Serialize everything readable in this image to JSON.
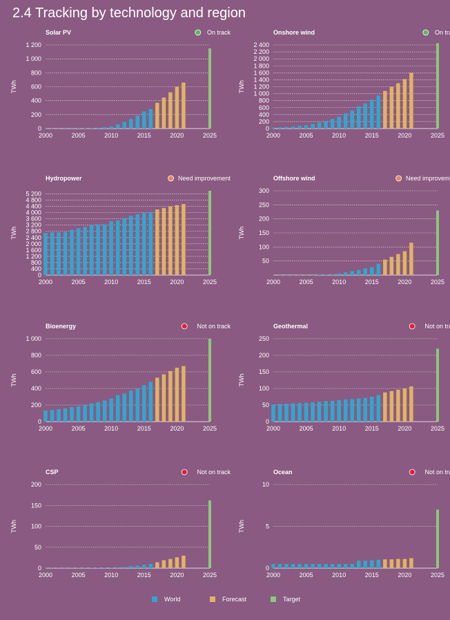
{
  "page": {
    "title": "2.4 Tracking by technology and region"
  },
  "colors": {
    "world": "#2fa8cf",
    "forecast": "#e0b366",
    "target": "#8cc97a",
    "on_track": "#5cb85c",
    "need_improvement": "#e08a5c",
    "not_on_track": "#e0203a"
  },
  "legend": [
    {
      "label": "World",
      "key": "world"
    },
    {
      "label": "Forecast",
      "key": "forecast"
    },
    {
      "label": "Target",
      "key": "target"
    }
  ],
  "chart_data": [
    {
      "type": "bar",
      "title": "Solar PV",
      "status": "On track",
      "status_key": "on_track",
      "ylabel": "TWh",
      "yticks": [
        0,
        200,
        400,
        600,
        800,
        1000,
        1200
      ],
      "ytick_labels": [
        "0",
        "200",
        "400",
        "600",
        "800",
        "1 000",
        "1 200"
      ],
      "ylim": [
        0,
        1200
      ],
      "xticks": [
        2000,
        2005,
        2010,
        2015,
        2020,
        2025
      ],
      "world": {
        "x": [
          2000,
          2001,
          2002,
          2003,
          2004,
          2005,
          2006,
          2007,
          2008,
          2009,
          2010,
          2011,
          2012,
          2013,
          2014,
          2015,
          2016
        ],
        "values": [
          1,
          1,
          2,
          2,
          3,
          4,
          5,
          7,
          12,
          20,
          32,
          60,
          95,
          135,
          185,
          245,
          280
        ]
      },
      "forecast": {
        "x": [
          2017,
          2018,
          2019,
          2020,
          2021
        ],
        "values": [
          370,
          445,
          520,
          600,
          660
        ]
      },
      "target": {
        "x": 2025,
        "value": 1150
      }
    },
    {
      "type": "bar",
      "title": "Onshore wind",
      "status": "On track",
      "status_key": "on_track",
      "ylabel": "TWh",
      "yticks": [
        0,
        200,
        400,
        600,
        800,
        1000,
        1200,
        1400,
        1600,
        1800,
        2000,
        2200,
        2400
      ],
      "ytick_labels": [
        "0",
        "200",
        "400",
        "600",
        "800",
        "1 000",
        "1 200",
        "1 400",
        "1 600",
        "1 800",
        "2 000",
        "2 200",
        "2 400"
      ],
      "ylim": [
        0,
        2400
      ],
      "xticks": [
        2000,
        2005,
        2010,
        2015,
        2020,
        2025
      ],
      "world": {
        "x": [
          2000,
          2001,
          2002,
          2003,
          2004,
          2005,
          2006,
          2007,
          2008,
          2009,
          2010,
          2011,
          2012,
          2013,
          2014,
          2015,
          2016
        ],
        "values": [
          30,
          38,
          50,
          62,
          82,
          100,
          130,
          170,
          220,
          275,
          340,
          440,
          520,
          640,
          720,
          830,
          950
        ]
      },
      "forecast": {
        "x": [
          2017,
          2018,
          2019,
          2020,
          2021
        ],
        "values": [
          1080,
          1200,
          1300,
          1420,
          1600
        ]
      },
      "target": {
        "x": 2025,
        "value": 2450
      }
    },
    {
      "type": "bar",
      "title": "Hydropower",
      "status": "Need improvement",
      "status_key": "need_improvement",
      "ylabel": "TWh",
      "yticks": [
        0,
        400,
        800,
        1200,
        1600,
        2000,
        2400,
        2800,
        3200,
        3600,
        4000,
        4400,
        4800,
        5200
      ],
      "ytick_labels": [
        "0",
        "400",
        "800",
        "1 200",
        "1 600",
        "2 000",
        "2 400",
        "2 800",
        "3 200",
        "3 600",
        "4 000",
        "4 400",
        "4 800",
        "5 200"
      ],
      "ylim": [
        0,
        5400
      ],
      "xticks": [
        2000,
        2005,
        2010,
        2015,
        2020,
        2025
      ],
      "world": {
        "x": [
          2000,
          2001,
          2002,
          2003,
          2004,
          2005,
          2006,
          2007,
          2008,
          2009,
          2010,
          2011,
          2012,
          2013,
          2014,
          2015,
          2016
        ],
        "values": [
          2700,
          2750,
          2740,
          2760,
          2900,
          3000,
          3090,
          3200,
          3250,
          3250,
          3450,
          3500,
          3650,
          3800,
          3900,
          3980,
          4050
        ]
      },
      "forecast": {
        "x": [
          2017,
          2018,
          2019,
          2020,
          2021
        ],
        "values": [
          4200,
          4300,
          4400,
          4480,
          4550
        ]
      },
      "target": {
        "x": 2025,
        "value": 5400
      }
    },
    {
      "type": "bar",
      "title": "Offshore wind",
      "status": "Need improvement",
      "status_key": "need_improvement",
      "ylabel": "TWh",
      "yticks": [
        50,
        100,
        150,
        200,
        250,
        300
      ],
      "ytick_labels": [
        "50",
        "100",
        "150",
        "200",
        "250",
        "300"
      ],
      "ylim": [
        0,
        300
      ],
      "xticks": [
        2000,
        2005,
        2010,
        2015,
        2020,
        2025
      ],
      "world": {
        "x": [
          2000,
          2001,
          2002,
          2003,
          2004,
          2005,
          2006,
          2007,
          2008,
          2009,
          2010,
          2011,
          2012,
          2013,
          2014,
          2015,
          2016
        ],
        "values": [
          0,
          0,
          0,
          0,
          0,
          0,
          0,
          1,
          2,
          3,
          6,
          10,
          14,
          18,
          24,
          28,
          40
        ]
      },
      "forecast": {
        "x": [
          2017,
          2018,
          2019,
          2020,
          2021
        ],
        "values": [
          55,
          65,
          75,
          85,
          115
        ]
      },
      "target": {
        "x": 2025,
        "value": 230
      }
    },
    {
      "type": "bar",
      "title": "Bioenergy",
      "status": "Not on track",
      "status_key": "not_on_track",
      "ylabel": "TWh",
      "yticks": [
        0,
        200,
        400,
        600,
        800,
        1000
      ],
      "ytick_labels": [
        "0",
        "200",
        "400",
        "600",
        "800",
        "1 000"
      ],
      "ylim": [
        0,
        1000
      ],
      "xticks": [
        2000,
        2005,
        2010,
        2015,
        2020,
        2025
      ],
      "world": {
        "x": [
          2000,
          2001,
          2002,
          2003,
          2004,
          2005,
          2006,
          2007,
          2008,
          2009,
          2010,
          2011,
          2012,
          2013,
          2014,
          2015,
          2016
        ],
        "values": [
          135,
          140,
          150,
          160,
          175,
          185,
          200,
          220,
          235,
          255,
          280,
          320,
          340,
          375,
          400,
          440,
          480
        ]
      },
      "forecast": {
        "x": [
          2017,
          2018,
          2019,
          2020,
          2021
        ],
        "values": [
          530,
          570,
          610,
          650,
          670
        ]
      },
      "target": {
        "x": 2025,
        "value": 1000
      }
    },
    {
      "type": "bar",
      "title": "Geothermal",
      "status": "Not on track",
      "status_key": "not_on_track",
      "ylabel": "TWh",
      "yticks": [
        0,
        50,
        100,
        150,
        200,
        250
      ],
      "ytick_labels": [
        "0",
        "50",
        "100",
        "150",
        "200",
        "250"
      ],
      "ylim": [
        0,
        250
      ],
      "xticks": [
        2000,
        2005,
        2010,
        2015,
        2020,
        2025
      ],
      "world": {
        "x": [
          2000,
          2001,
          2002,
          2003,
          2004,
          2005,
          2006,
          2007,
          2008,
          2009,
          2010,
          2011,
          2012,
          2013,
          2014,
          2015,
          2016
        ],
        "values": [
          52,
          53,
          54,
          55,
          56,
          57,
          58,
          60,
          62,
          63,
          65,
          67,
          68,
          70,
          72,
          75,
          80
        ]
      },
      "forecast": {
        "x": [
          2017,
          2018,
          2019,
          2020,
          2021
        ],
        "values": [
          88,
          92,
          96,
          100,
          106
        ]
      },
      "target": {
        "x": 2025,
        "value": 220
      }
    },
    {
      "type": "bar",
      "title": "CSP",
      "status": "Not on track",
      "status_key": "not_on_track",
      "ylabel": "TWh",
      "yticks": [
        0,
        50,
        100,
        150,
        200
      ],
      "ytick_labels": [
        "0",
        "50",
        "100",
        "150",
        "200"
      ],
      "ylim": [
        0,
        200
      ],
      "xticks": [
        2000,
        2005,
        2010,
        2015,
        2020,
        2025
      ],
      "world": {
        "x": [
          2000,
          2001,
          2002,
          2003,
          2004,
          2005,
          2006,
          2007,
          2008,
          2009,
          2010,
          2011,
          2012,
          2013,
          2014,
          2015,
          2016
        ],
        "values": [
          0.5,
          0.5,
          0.5,
          0.5,
          0.5,
          0.6,
          0.6,
          0.7,
          0.9,
          1,
          1.5,
          2,
          3,
          5,
          6,
          8,
          10
        ]
      },
      "forecast": {
        "x": [
          2017,
          2018,
          2019,
          2020,
          2021
        ],
        "values": [
          14,
          19,
          22,
          26,
          30
        ]
      },
      "target": {
        "x": 2025,
        "value": 162
      }
    },
    {
      "type": "bar",
      "title": "Ocean",
      "status": "Not on track",
      "status_key": "not_on_track",
      "ylabel": "TWh",
      "yticks": [
        0,
        5,
        10
      ],
      "ytick_labels": [
        "0",
        "5",
        "10"
      ],
      "ylim": [
        0,
        10
      ],
      "xticks": [
        2000,
        2005,
        2010,
        2015,
        2020,
        2025
      ],
      "world": {
        "x": [
          2000,
          2001,
          2002,
          2003,
          2004,
          2005,
          2006,
          2007,
          2008,
          2009,
          2010,
          2011,
          2012,
          2013,
          2014,
          2015,
          2016
        ],
        "values": [
          0.5,
          0.5,
          0.5,
          0.5,
          0.5,
          0.5,
          0.5,
          0.5,
          0.5,
          0.5,
          0.5,
          0.5,
          0.5,
          0.9,
          0.9,
          0.95,
          1
        ]
      },
      "forecast": {
        "x": [
          2017,
          2018,
          2019,
          2020,
          2021
        ],
        "values": [
          1.05,
          1.05,
          1.1,
          1.1,
          1.2
        ]
      },
      "target": {
        "x": 2025,
        "value": 7
      }
    }
  ]
}
